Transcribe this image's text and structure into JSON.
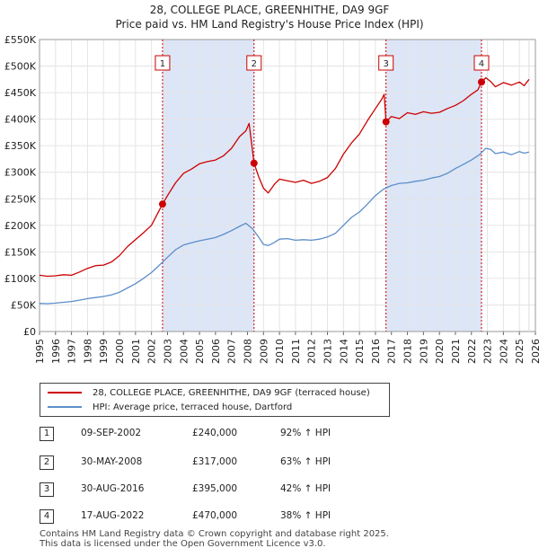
{
  "title_line1": "28, COLLEGE PLACE, GREENHITHE, DA9 9GF",
  "title_line2": "Price paid vs. HM Land Registry's House Price Index (HPI)",
  "colors": {
    "property": "#cc0000",
    "hpi": "#5b8ec9",
    "shade": "#dde6f7"
  },
  "chart_data": {
    "type": "line",
    "y_ticks": [
      "£0",
      "£50K",
      "£100K",
      "£150K",
      "£200K",
      "£250K",
      "£300K",
      "£350K",
      "£400K",
      "£450K",
      "£500K",
      "£550K"
    ],
    "ylim": [
      0,
      550000
    ],
    "xlim": [
      1995,
      2026
    ],
    "x_ticks": [
      "1995",
      "1996",
      "1997",
      "1998",
      "1999",
      "2000",
      "2001",
      "2002",
      "2003",
      "2004",
      "2005",
      "2006",
      "2007",
      "2008",
      "2009",
      "2010",
      "2011",
      "2012",
      "2013",
      "2014",
      "2015",
      "2016",
      "2017",
      "2018",
      "2019",
      "2020",
      "2021",
      "2022",
      "2023",
      "2024",
      "2025",
      "2026"
    ],
    "series": [
      {
        "name": "28, COLLEGE PLACE, GREENHITHE, DA9 9GF (terraced house)",
        "x": [
          1995.0,
          1995.5,
          1996.0,
          1996.5,
          1997.0,
          1997.5,
          1998.0,
          1998.5,
          1999.0,
          1999.5,
          2000.0,
          2000.5,
          2001.0,
          2001.5,
          2002.0,
          2002.69,
          2003.0,
          2003.5,
          2004.0,
          2004.5,
          2005.0,
          2005.5,
          2006.0,
          2006.5,
          2007.0,
          2007.5,
          2007.9,
          2008.1,
          2008.41,
          2008.7,
          2009.0,
          2009.3,
          2009.7,
          2010.0,
          2010.5,
          2011.0,
          2011.5,
          2012.0,
          2012.5,
          2013.0,
          2013.5,
          2014.0,
          2014.5,
          2015.0,
          2015.5,
          2016.0,
          2016.4,
          2016.55,
          2016.66,
          2017.0,
          2017.5,
          2018.0,
          2018.5,
          2019.0,
          2019.5,
          2020.0,
          2020.5,
          2021.0,
          2021.5,
          2022.0,
          2022.4,
          2022.63,
          2022.9,
          2023.2,
          2023.5,
          2024.0,
          2024.5,
          2025.0,
          2025.3,
          2025.6
        ],
        "values": [
          106000,
          104000,
          105000,
          107000,
          106000,
          112000,
          119000,
          124000,
          125000,
          131000,
          143000,
          160000,
          173000,
          186000,
          200000,
          240000,
          256000,
          280000,
          298000,
          306000,
          316000,
          320000,
          323000,
          331000,
          345000,
          367000,
          378000,
          392000,
          317000,
          292000,
          270000,
          261000,
          278000,
          287000,
          284000,
          281000,
          285000,
          279000,
          283000,
          290000,
          307000,
          334000,
          355000,
          372000,
          397000,
          420000,
          438000,
          447000,
          395000,
          405000,
          401000,
          412000,
          409000,
          414000,
          411000,
          413000,
          420000,
          426000,
          435000,
          447000,
          455000,
          470000,
          478000,
          471000,
          461000,
          469000,
          464000,
          470000,
          463000,
          475000
        ]
      },
      {
        "name": "HPI: Average price, terraced house, Dartford",
        "x": [
          1995.0,
          1995.5,
          1996.0,
          1996.5,
          1997.0,
          1997.5,
          1998.0,
          1998.5,
          1999.0,
          1999.5,
          2000.0,
          2000.5,
          2001.0,
          2001.5,
          2002.0,
          2002.5,
          2003.0,
          2003.5,
          2004.0,
          2004.5,
          2005.0,
          2005.5,
          2006.0,
          2006.5,
          2007.0,
          2007.5,
          2007.9,
          2008.3,
          2008.7,
          2009.0,
          2009.3,
          2009.7,
          2010.0,
          2010.5,
          2011.0,
          2011.5,
          2012.0,
          2012.5,
          2013.0,
          2013.5,
          2014.0,
          2014.5,
          2015.0,
          2015.5,
          2016.0,
          2016.5,
          2017.0,
          2017.5,
          2018.0,
          2018.5,
          2019.0,
          2019.5,
          2020.0,
          2020.5,
          2021.0,
          2021.5,
          2022.0,
          2022.5,
          2022.9,
          2023.2,
          2023.5,
          2024.0,
          2024.5,
          2025.0,
          2025.3,
          2025.6
        ],
        "values": [
          53000,
          52500,
          53500,
          55000,
          56500,
          59000,
          62000,
          64000,
          66000,
          69000,
          74000,
          82000,
          90000,
          100000,
          111000,
          125000,
          140000,
          154000,
          163000,
          167000,
          171000,
          174000,
          177000,
          183000,
          190000,
          198000,
          204000,
          194000,
          178000,
          164000,
          162000,
          168000,
          174000,
          175000,
          172000,
          173000,
          172000,
          174000,
          178000,
          185000,
          200000,
          215000,
          225000,
          240000,
          256000,
          268000,
          275000,
          279000,
          280000,
          283000,
          285000,
          289000,
          292000,
          298000,
          307000,
          315000,
          323000,
          333000,
          345000,
          343000,
          335000,
          338000,
          333000,
          339000,
          336000,
          338000
        ]
      }
    ],
    "sales": [
      {
        "label": "1",
        "x": 2002.69,
        "price": 240000
      },
      {
        "label": "2",
        "x": 2008.41,
        "price": 317000
      },
      {
        "label": "3",
        "x": 2016.66,
        "price": 395000
      },
      {
        "label": "4",
        "x": 2022.63,
        "price": 470000
      }
    ],
    "shaded": [
      [
        2002.69,
        2008.41
      ],
      [
        2016.66,
        2022.63
      ]
    ]
  },
  "legend": {
    "property": "28, COLLEGE PLACE, GREENHITHE, DA9 9GF (terraced house)",
    "hpi": "HPI: Average price, terraced house, Dartford"
  },
  "table": [
    {
      "n": "1",
      "date": "09-SEP-2002",
      "price": "£240,000",
      "hpi": "92% ↑ HPI"
    },
    {
      "n": "2",
      "date": "30-MAY-2008",
      "price": "£317,000",
      "hpi": "63% ↑ HPI"
    },
    {
      "n": "3",
      "date": "30-AUG-2016",
      "price": "£395,000",
      "hpi": "42% ↑ HPI"
    },
    {
      "n": "4",
      "date": "17-AUG-2022",
      "price": "£470,000",
      "hpi": "38% ↑ HPI"
    }
  ],
  "footer_line1": "Contains HM Land Registry data © Crown copyright and database right 2025.",
  "footer_line2": "This data is licensed under the Open Government Licence v3.0."
}
